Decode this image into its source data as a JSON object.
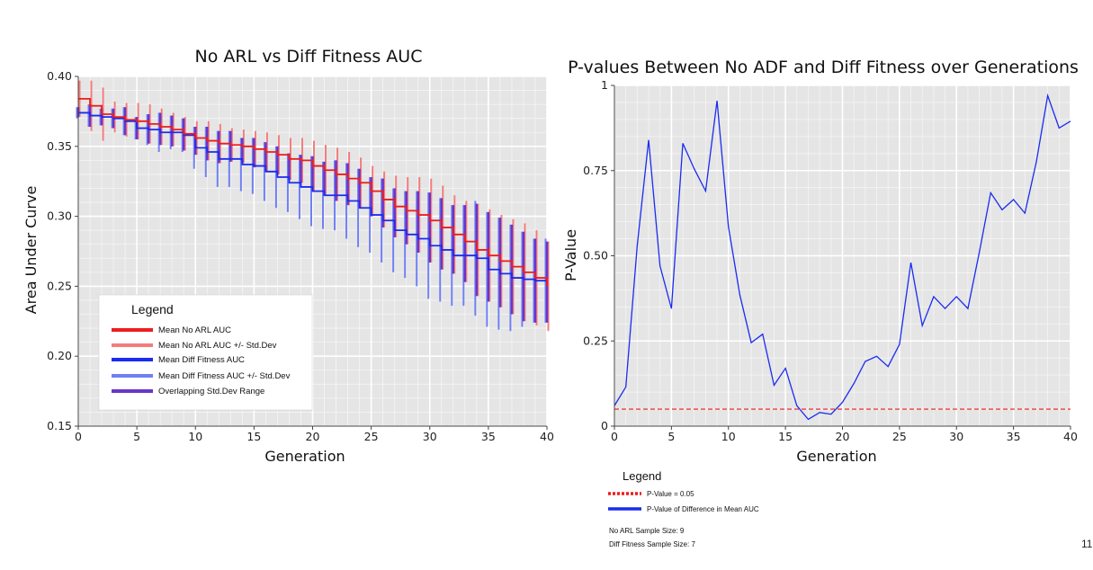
{
  "page_number": "11",
  "chart_data": [
    {
      "type": "line",
      "title": "No ARL vs Diff Fitness AUC",
      "xlabel": "Generation",
      "ylabel": "Area Under Curve",
      "xlim": [
        0,
        40
      ],
      "ylim": [
        0.15,
        0.4
      ],
      "xticks": [
        0,
        5,
        10,
        15,
        20,
        25,
        30,
        35,
        40
      ],
      "yticks": [
        0.15,
        0.2,
        0.25,
        0.3,
        0.35,
        0.4
      ],
      "ytick_labels": [
        "0.15",
        "0.20",
        "0.25",
        "0.30",
        "0.35",
        "0.40"
      ],
      "grid": true,
      "legend_position": "bottom-left",
      "legend_title": "Legend",
      "x": [
        0,
        1,
        2,
        3,
        4,
        5,
        6,
        7,
        8,
        9,
        10,
        11,
        12,
        13,
        14,
        15,
        16,
        17,
        18,
        19,
        20,
        21,
        22,
        23,
        24,
        25,
        26,
        27,
        28,
        29,
        30,
        31,
        32,
        33,
        34,
        35,
        36,
        37,
        38,
        39,
        40
      ],
      "series": [
        {
          "name": "Mean No ARL AUC",
          "color": "#ee1c1c",
          "values": [
            0.384,
            0.379,
            0.373,
            0.371,
            0.369,
            0.368,
            0.366,
            0.364,
            0.362,
            0.359,
            0.356,
            0.354,
            0.352,
            0.351,
            0.35,
            0.348,
            0.346,
            0.344,
            0.341,
            0.34,
            0.336,
            0.333,
            0.33,
            0.327,
            0.324,
            0.318,
            0.312,
            0.307,
            0.304,
            0.301,
            0.297,
            0.292,
            0.287,
            0.282,
            0.276,
            0.272,
            0.268,
            0.264,
            0.26,
            0.256,
            0.25
          ],
          "std": [
            0.013,
            0.018,
            0.019,
            0.011,
            0.012,
            0.013,
            0.014,
            0.013,
            0.012,
            0.012,
            0.012,
            0.014,
            0.014,
            0.012,
            0.012,
            0.013,
            0.014,
            0.014,
            0.015,
            0.016,
            0.018,
            0.018,
            0.019,
            0.019,
            0.018,
            0.018,
            0.02,
            0.022,
            0.024,
            0.027,
            0.03,
            0.03,
            0.028,
            0.029,
            0.033,
            0.033,
            0.033,
            0.034,
            0.035,
            0.034,
            0.032
          ]
        },
        {
          "name": "Mean Diff Fitness AUC",
          "color": "#1a2cf0",
          "values": [
            0.374,
            0.372,
            0.371,
            0.37,
            0.368,
            0.363,
            0.362,
            0.36,
            0.36,
            0.358,
            0.349,
            0.346,
            0.341,
            0.341,
            0.337,
            0.336,
            0.332,
            0.328,
            0.324,
            0.321,
            0.318,
            0.315,
            0.315,
            0.311,
            0.306,
            0.301,
            0.297,
            0.29,
            0.287,
            0.284,
            0.279,
            0.276,
            0.272,
            0.272,
            0.27,
            0.262,
            0.259,
            0.256,
            0.255,
            0.254,
            0.254
          ],
          "std": [
            0.004,
            0.008,
            0.006,
            0.007,
            0.01,
            0.008,
            0.011,
            0.014,
            0.012,
            0.012,
            0.015,
            0.018,
            0.02,
            0.02,
            0.019,
            0.02,
            0.021,
            0.022,
            0.021,
            0.023,
            0.025,
            0.024,
            0.025,
            0.027,
            0.028,
            0.027,
            0.03,
            0.03,
            0.031,
            0.034,
            0.038,
            0.037,
            0.036,
            0.036,
            0.041,
            0.041,
            0.04,
            0.038,
            0.034,
            0.03,
            0.03
          ]
        }
      ],
      "legend": [
        {
          "label": "Mean No ARL AUC",
          "color": "#ee1c1c"
        },
        {
          "label": "Mean No ARL AUC +/- Std.Dev",
          "color": "#f47c7c"
        },
        {
          "label": "Mean Diff Fitness AUC",
          "color": "#1a2cf0"
        },
        {
          "label": "Mean Diff Fitness AUC +/- Std.Dev",
          "color": "#6f7ff5"
        },
        {
          "label": "Overlapping Std.Dev Range",
          "color": "#6a35c8"
        }
      ]
    },
    {
      "type": "line",
      "title": "P-values Between No ADF and Diff Fitness over Generations",
      "xlabel": "Generation",
      "ylabel": "P-Value",
      "xlim": [
        0,
        40
      ],
      "ylim": [
        0,
        1
      ],
      "xticks": [
        0,
        5,
        10,
        15,
        20,
        25,
        30,
        35,
        40
      ],
      "yticks": [
        0,
        0.25,
        0.5,
        0.75,
        1
      ],
      "ytick_labels": [
        "0",
        "0.25",
        "0.50",
        "0.75",
        "1"
      ],
      "grid": true,
      "legend_position": "below",
      "legend_title": "Legend",
      "x": [
        0,
        1,
        2,
        3,
        4,
        5,
        6,
        7,
        8,
        9,
        10,
        11,
        12,
        13,
        14,
        15,
        16,
        17,
        18,
        19,
        20,
        21,
        22,
        23,
        24,
        25,
        26,
        27,
        28,
        29,
        30,
        31,
        32,
        33,
        34,
        35,
        36,
        37,
        38,
        39,
        40
      ],
      "series": [
        {
          "name": "P-Value of Difference in Mean AUC",
          "color": "#1a2cf0",
          "values": [
            0.06,
            0.115,
            0.53,
            0.84,
            0.47,
            0.345,
            0.83,
            0.755,
            0.69,
            0.955,
            0.585,
            0.385,
            0.245,
            0.27,
            0.12,
            0.17,
            0.06,
            0.02,
            0.04,
            0.035,
            0.07,
            0.125,
            0.19,
            0.205,
            0.175,
            0.24,
            0.48,
            0.295,
            0.38,
            0.345,
            0.38,
            0.345,
            0.51,
            0.685,
            0.635,
            0.665,
            0.625,
            0.775,
            0.97,
            0.875,
            0.895
          ]
        },
        {
          "name": "P-Value = 0.05",
          "color": "#ee1c1c",
          "dashed": true,
          "values": [
            0.05,
            0.05,
            0.05,
            0.05,
            0.05,
            0.05,
            0.05,
            0.05,
            0.05,
            0.05,
            0.05,
            0.05,
            0.05,
            0.05,
            0.05,
            0.05,
            0.05,
            0.05,
            0.05,
            0.05,
            0.05,
            0.05,
            0.05,
            0.05,
            0.05,
            0.05,
            0.05,
            0.05,
            0.05,
            0.05,
            0.05,
            0.05,
            0.05,
            0.05,
            0.05,
            0.05,
            0.05,
            0.05,
            0.05,
            0.05,
            0.05
          ]
        }
      ],
      "legend": [
        {
          "label": "P-Value = 0.05",
          "color": "#ee1c1c",
          "dashed": true
        },
        {
          "label": "P-Value of Difference in Mean AUC",
          "color": "#1a2cf0"
        }
      ],
      "notes": [
        "No ARL Sample Size: 9",
        "Diff Fitness Sample Size:  7"
      ]
    }
  ]
}
